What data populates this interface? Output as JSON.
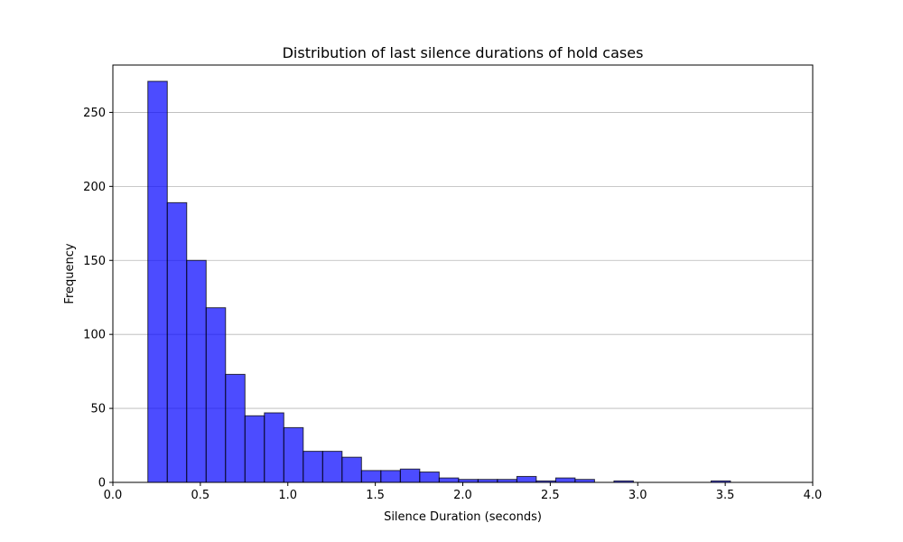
{
  "chart_data": {
    "type": "bar",
    "title": "Distribution of last silence durations of hold cases",
    "xlabel": "Silence Duration (seconds)",
    "ylabel": "Frequency",
    "xlim": [
      0.0,
      4.0
    ],
    "ylim": [
      0,
      282
    ],
    "x_ticks": [
      0.0,
      0.5,
      1.0,
      1.5,
      2.0,
      2.5,
      3.0,
      3.5,
      4.0
    ],
    "x_tick_labels": [
      "0.0",
      "0.5",
      "1.0",
      "1.5",
      "2.0",
      "2.5",
      "3.0",
      "3.5",
      "4.0"
    ],
    "y_ticks": [
      0,
      50,
      100,
      150,
      200,
      250
    ],
    "y_tick_labels": [
      "0",
      "50",
      "100",
      "150",
      "200",
      "250"
    ],
    "grid": "horizontal",
    "bar_color": "#0000ff",
    "bar_alpha": 0.7,
    "edge_color": "#000000",
    "bins": [
      {
        "start": 0.2,
        "end": 0.311,
        "count": 271
      },
      {
        "start": 0.311,
        "end": 0.422,
        "count": 189
      },
      {
        "start": 0.422,
        "end": 0.533,
        "count": 150
      },
      {
        "start": 0.533,
        "end": 0.644,
        "count": 118
      },
      {
        "start": 0.644,
        "end": 0.755,
        "count": 73
      },
      {
        "start": 0.755,
        "end": 0.866,
        "count": 45
      },
      {
        "start": 0.866,
        "end": 0.977,
        "count": 47
      },
      {
        "start": 0.977,
        "end": 1.088,
        "count": 37
      },
      {
        "start": 1.088,
        "end": 1.199,
        "count": 21
      },
      {
        "start": 1.199,
        "end": 1.31,
        "count": 21
      },
      {
        "start": 1.31,
        "end": 1.421,
        "count": 17
      },
      {
        "start": 1.421,
        "end": 1.532,
        "count": 8
      },
      {
        "start": 1.532,
        "end": 1.643,
        "count": 8
      },
      {
        "start": 1.643,
        "end": 1.754,
        "count": 9
      },
      {
        "start": 1.754,
        "end": 1.865,
        "count": 7
      },
      {
        "start": 1.865,
        "end": 1.976,
        "count": 3
      },
      {
        "start": 1.976,
        "end": 2.087,
        "count": 2
      },
      {
        "start": 2.087,
        "end": 2.198,
        "count": 2
      },
      {
        "start": 2.198,
        "end": 2.309,
        "count": 2
      },
      {
        "start": 2.309,
        "end": 2.42,
        "count": 4
      },
      {
        "start": 2.42,
        "end": 2.531,
        "count": 1
      },
      {
        "start": 2.531,
        "end": 2.642,
        "count": 3
      },
      {
        "start": 2.642,
        "end": 2.753,
        "count": 2
      },
      {
        "start": 2.753,
        "end": 2.864,
        "count": 0
      },
      {
        "start": 2.864,
        "end": 2.975,
        "count": 1
      },
      {
        "start": 2.975,
        "end": 3.086,
        "count": 0
      },
      {
        "start": 3.086,
        "end": 3.197,
        "count": 0
      },
      {
        "start": 3.197,
        "end": 3.308,
        "count": 0
      },
      {
        "start": 3.308,
        "end": 3.419,
        "count": 0
      },
      {
        "start": 3.419,
        "end": 3.53,
        "count": 1
      },
      {
        "start": 3.53,
        "end": 3.641,
        "count": 0
      },
      {
        "start": 3.641,
        "end": 3.752,
        "count": 0
      },
      {
        "start": 3.752,
        "end": 3.863,
        "count": 0
      }
    ]
  }
}
